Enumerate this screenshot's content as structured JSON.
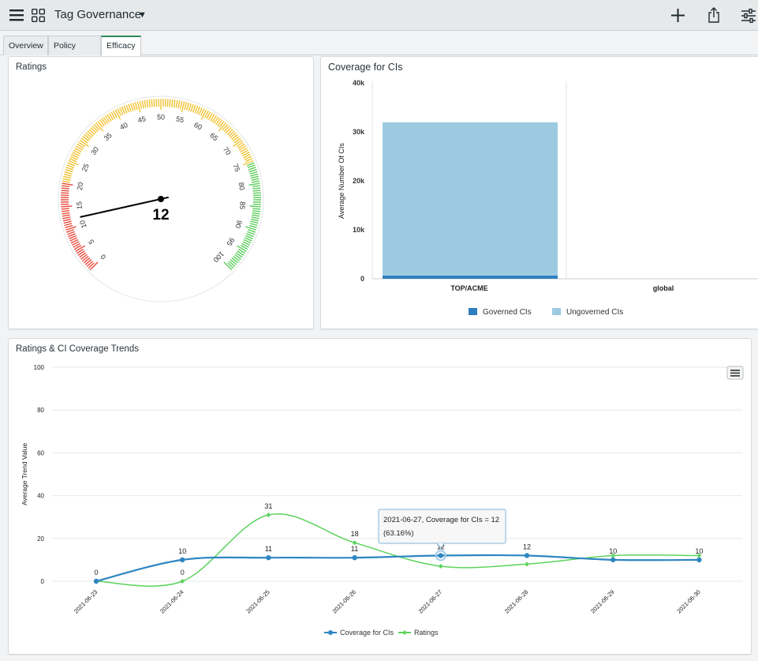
{
  "app": {
    "title": "Tag Governance"
  },
  "tabs": [
    {
      "label": "Overview",
      "active": false
    },
    {
      "label": "Policy View",
      "active": false
    },
    {
      "label": "Efficacy",
      "active": true
    }
  ],
  "icons": {
    "menu": "hamburger-icon",
    "apps": "grid-icon",
    "dropdown": "caret-down-icon",
    "add": "plus-icon",
    "share": "share-icon",
    "settings": "sliders-icon",
    "chart_menu": "chart-menu-icon"
  },
  "colors": {
    "red": "#e84a3c",
    "yellow": "#f1c232",
    "green": "#5ccc5c",
    "governed": "#2f7fbf",
    "ungoverned": "#9ecae1",
    "coverage_line": "#2e86c1",
    "ratings_line": "#5dd35d"
  },
  "gauge": {
    "title": "Ratings",
    "value": 12,
    "min": 0,
    "max": 100,
    "ticks": [
      "0",
      "5",
      "10",
      "15",
      "20",
      "25",
      "30",
      "35",
      "40",
      "45",
      "50",
      "55",
      "60",
      "65",
      "70",
      "75",
      "80",
      "85",
      "90",
      "95",
      "100"
    ]
  },
  "coverage": {
    "title": "Coverage for CIs",
    "chart_data": {
      "type": "bar",
      "stacked": true,
      "categories": [
        "TOP/ACME",
        "global"
      ],
      "series": [
        {
          "name": "Governed CIs",
          "values": [
            650,
            0
          ]
        },
        {
          "name": "Ungoverned CIs",
          "values": [
            31300,
            0
          ]
        }
      ],
      "ylabel": "Average Number Of CIs",
      "ylim": [
        0,
        40000
      ],
      "yticks": [
        "0",
        "10k",
        "20k",
        "30k",
        "40k"
      ],
      "legend": "bottom"
    }
  },
  "trends": {
    "title": "Ratings & CI Coverage Trends",
    "tooltip": {
      "line1": "2021-06-27, Coverage for CIs = 12",
      "line2": "(63.16%)"
    },
    "chart_data": {
      "type": "line",
      "x": [
        "2021-06-23",
        "2021-06-24",
        "2021-06-25",
        "2021-06-26",
        "2021-06-27",
        "2021-06-28",
        "2021-06-29",
        "2021-06-30"
      ],
      "series": [
        {
          "name": "Coverage for CIs",
          "values": [
            0,
            10,
            11,
            11,
            12,
            12,
            10,
            10
          ],
          "labels": [
            "0",
            "10",
            "11",
            "11",
            "12",
            "12",
            "10",
            "10"
          ]
        },
        {
          "name": "Ratings",
          "values": [
            0,
            0,
            31,
            18,
            7,
            8,
            12,
            12
          ],
          "labels": [
            "",
            "0",
            "31",
            "18",
            "",
            "",
            "",
            ""
          ]
        }
      ],
      "ylabel": "Average Trend Value",
      "ylim": [
        0,
        100
      ],
      "yticks": [
        "0",
        "20",
        "40",
        "60",
        "80",
        "100"
      ],
      "legend": "bottom"
    }
  }
}
